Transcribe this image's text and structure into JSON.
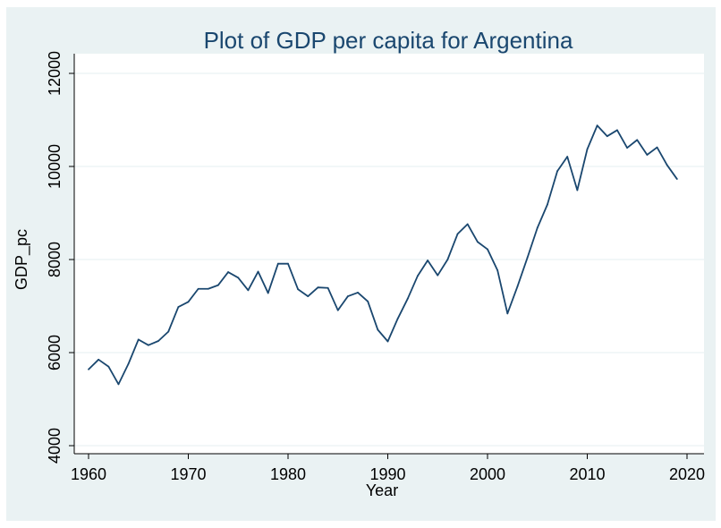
{
  "chart_data": {
    "type": "line",
    "title": "Plot of GDP per capita for Argentina",
    "xlabel": "Year",
    "ylabel": "GDP_pc",
    "xlim": [
      1960,
      2020
    ],
    "ylim": [
      4000,
      12000
    ],
    "xticks": [
      1960,
      1970,
      1980,
      1990,
      2000,
      2010,
      2020
    ],
    "yticks": [
      4000,
      6000,
      8000,
      10000,
      12000
    ],
    "grid": true,
    "colors": {
      "line": "#1a476f",
      "title": "#1a476f",
      "outer_background": "#eaf2f3",
      "plot_background": "#ffffff"
    },
    "series": [
      {
        "name": "GDP_pc",
        "x": [
          1960,
          1961,
          1962,
          1963,
          1964,
          1965,
          1966,
          1967,
          1968,
          1969,
          1970,
          1971,
          1972,
          1973,
          1974,
          1975,
          1976,
          1977,
          1978,
          1979,
          1980,
          1981,
          1982,
          1983,
          1984,
          1985,
          1986,
          1987,
          1988,
          1989,
          1990,
          1991,
          1992,
          1993,
          1994,
          1995,
          1996,
          1997,
          1998,
          1999,
          2000,
          2001,
          2002,
          2003,
          2004,
          2005,
          2006,
          2007,
          2008,
          2009,
          2010,
          2011,
          2012,
          2013,
          2014,
          2015,
          2016,
          2017,
          2018,
          2019
        ],
        "values": [
          5640,
          5850,
          5700,
          5320,
          5760,
          6280,
          6160,
          6250,
          6450,
          6980,
          7090,
          7370,
          7370,
          7450,
          7730,
          7610,
          7340,
          7740,
          7280,
          7910,
          7910,
          7360,
          7210,
          7400,
          7390,
          6910,
          7210,
          7290,
          7100,
          6490,
          6240,
          6730,
          7160,
          7650,
          7980,
          7660,
          8000,
          8550,
          8760,
          8380,
          8220,
          7770,
          6840,
          7420,
          8040,
          8680,
          9180,
          9900,
          10210,
          9490,
          10370,
          10880,
          10650,
          10780,
          10400,
          10570,
          10250,
          10410,
          10030,
          9730
        ]
      }
    ]
  }
}
